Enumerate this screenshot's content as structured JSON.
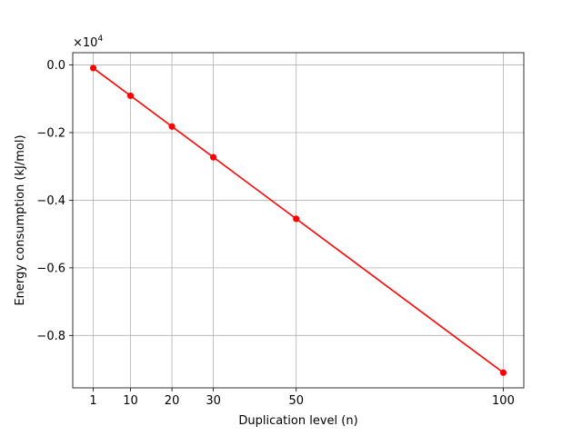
{
  "chart_data": {
    "type": "line",
    "title": "",
    "xlabel": "Duplication level (n)",
    "ylabel": "Energy consumption (kJ/mol)",
    "y_scale_label": "×10",
    "y_scale_exponent": "4",
    "x": [
      1,
      10,
      20,
      30,
      50,
      100
    ],
    "series": [
      {
        "values": [
          -0.0091,
          -0.091,
          -0.182,
          -0.273,
          -0.455,
          -0.91
        ],
        "color": "#ff0000",
        "marker": "circle"
      }
    ],
    "xticks": [
      1,
      10,
      20,
      30,
      50,
      100
    ],
    "xtick_labels": [
      "1",
      "10",
      "20",
      "30",
      "50",
      "100"
    ],
    "yticks": [
      0.0,
      -0.2,
      -0.4,
      -0.6,
      -0.8
    ],
    "ytick_labels": [
      "0.0",
      "−0.2",
      "−0.4",
      "−0.6",
      "−0.8"
    ],
    "xlim": [
      -3.95,
      104.95
    ],
    "ylim": [
      -0.955,
      0.0364
    ],
    "grid": true,
    "legend": "none"
  }
}
